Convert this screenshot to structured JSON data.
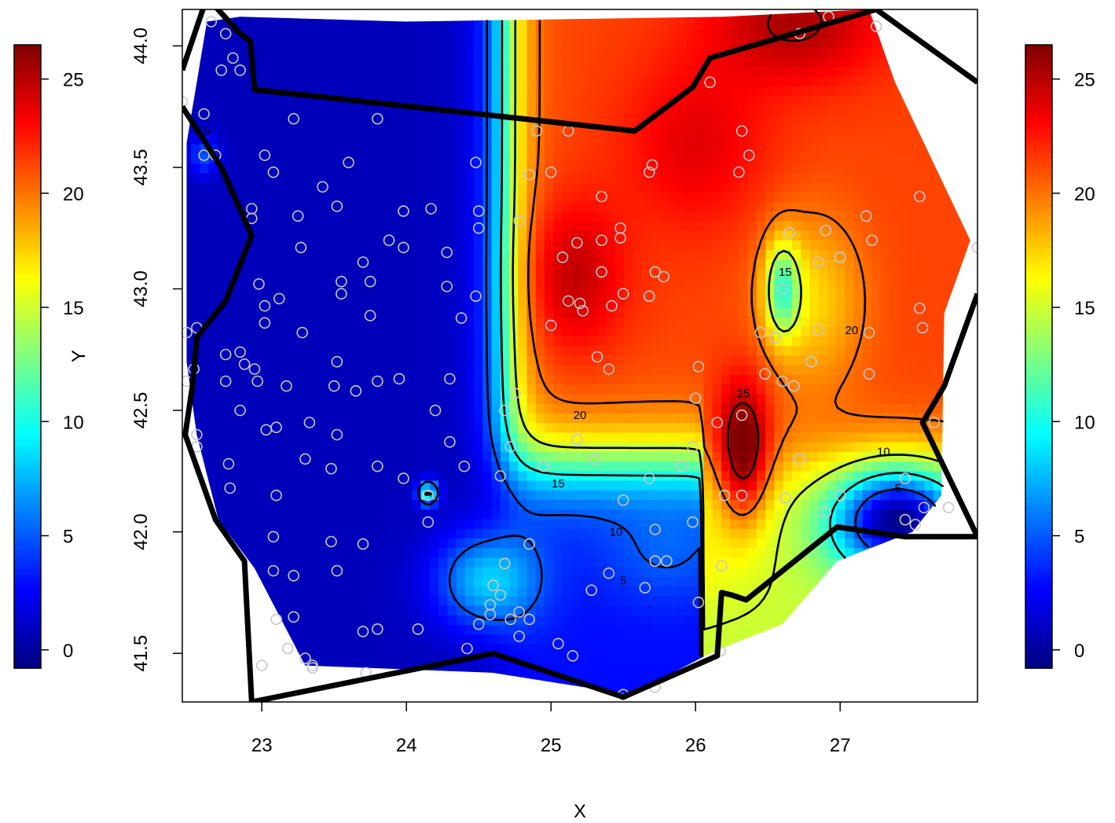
{
  "chart_data": {
    "type": "heatmap",
    "title": "",
    "xlabel": "X",
    "ylabel": "Y",
    "xlim": [
      22.45,
      27.95
    ],
    "ylim": [
      41.3,
      44.15
    ],
    "x_ticks": [
      "23",
      "24",
      "25",
      "26",
      "27"
    ],
    "x_tick_values": [
      23,
      24,
      25,
      26,
      27
    ],
    "y_ticks": [
      "41.5",
      "42.0",
      "42.5",
      "43.0",
      "43.5",
      "44.0"
    ],
    "y_tick_values": [
      41.5,
      42.0,
      42.5,
      43.0,
      43.5,
      44.0
    ],
    "value_range": [
      -0.8,
      26.5
    ],
    "colorbar_ticks": [
      "0",
      "5",
      "10",
      "15",
      "20",
      "25"
    ],
    "colorbar_tick_values": [
      0,
      5,
      10,
      15,
      20,
      25
    ],
    "colormap": [
      "#00007F",
      "#0000FF",
      "#007FFF",
      "#00FFFF",
      "#7FFF7F",
      "#FFFF00",
      "#FF7F00",
      "#FF0000",
      "#7F0000"
    ],
    "contour_levels": [
      5,
      10,
      15,
      20,
      25
    ],
    "contour_labels": [
      {
        "text": "5",
        "x": 22.62,
        "y": 43.65
      },
      {
        "text": "5",
        "x": 25.5,
        "y": 41.8
      },
      {
        "text": "5",
        "x": 27.4,
        "y": 42.18
      },
      {
        "text": "10",
        "x": 25.45,
        "y": 42.0
      },
      {
        "text": "10",
        "x": 27.3,
        "y": 42.33
      },
      {
        "text": "15",
        "x": 25.05,
        "y": 42.2
      },
      {
        "text": "15",
        "x": 26.62,
        "y": 43.07
      },
      {
        "text": "20",
        "x": 25.2,
        "y": 42.48
      },
      {
        "text": "20",
        "x": 27.08,
        "y": 42.83
      },
      {
        "text": "25",
        "x": 26.33,
        "y": 42.57
      }
    ],
    "surface_peaks": [
      {
        "x": 26.35,
        "y": 42.33,
        "value": 26.5
      },
      {
        "x": 26.7,
        "y": 44.1,
        "value": 25.0
      },
      {
        "x": 25.15,
        "y": 43.05,
        "value": 23.0
      },
      {
        "x": 26.0,
        "y": 43.6,
        "value": 22.0
      }
    ],
    "surface_troughs": [
      {
        "x": 23.4,
        "y": 42.7,
        "value": 0.5
      },
      {
        "x": 24.15,
        "y": 42.16,
        "value": 11.0
      },
      {
        "x": 26.6,
        "y": 43.0,
        "value": 13.0
      },
      {
        "x": 27.4,
        "y": 42.05,
        "value": 1.0
      }
    ],
    "observation_points": [
      [
        22.65,
        44.1
      ],
      [
        22.75,
        44.05
      ],
      [
        22.8,
        43.95
      ],
      [
        22.72,
        43.9
      ],
      [
        22.85,
        43.9
      ],
      [
        22.45,
        43.77
      ],
      [
        22.6,
        43.72
      ],
      [
        22.6,
        43.55
      ],
      [
        22.68,
        43.55
      ],
      [
        23.02,
        43.55
      ],
      [
        23.08,
        43.48
      ],
      [
        23.22,
        43.7
      ],
      [
        23.6,
        43.52
      ],
      [
        23.8,
        43.7
      ],
      [
        23.42,
        43.42
      ],
      [
        23.52,
        43.34
      ],
      [
        22.93,
        43.33
      ],
      [
        22.93,
        43.29
      ],
      [
        23.25,
        43.3
      ],
      [
        23.27,
        43.17
      ],
      [
        23.98,
        43.32
      ],
      [
        23.88,
        43.2
      ],
      [
        23.98,
        43.17
      ],
      [
        24.17,
        43.33
      ],
      [
        23.7,
        43.11
      ],
      [
        23.75,
        43.03
      ],
      [
        23.55,
        43.03
      ],
      [
        23.55,
        42.98
      ],
      [
        22.98,
        43.02
      ],
      [
        23.12,
        42.96
      ],
      [
        23.02,
        42.93
      ],
      [
        23.02,
        42.86
      ],
      [
        23.28,
        42.82
      ],
      [
        23.75,
        42.89
      ],
      [
        22.48,
        42.82
      ],
      [
        22.55,
        42.84
      ],
      [
        22.53,
        42.67
      ],
      [
        22.48,
        42.62
      ],
      [
        22.75,
        42.73
      ],
      [
        22.85,
        42.74
      ],
      [
        22.88,
        42.69
      ],
      [
        22.95,
        42.67
      ],
      [
        22.97,
        42.62
      ],
      [
        22.75,
        42.62
      ],
      [
        23.17,
        42.6
      ],
      [
        23.5,
        42.6
      ],
      [
        23.65,
        42.58
      ],
      [
        23.8,
        42.62
      ],
      [
        23.95,
        42.63
      ],
      [
        23.52,
        42.7
      ],
      [
        22.85,
        42.5
      ],
      [
        23.03,
        42.42
      ],
      [
        23.1,
        42.43
      ],
      [
        23.33,
        42.45
      ],
      [
        23.52,
        42.4
      ],
      [
        22.55,
        42.4
      ],
      [
        22.55,
        42.35
      ],
      [
        23.3,
        42.3
      ],
      [
        22.77,
        42.28
      ],
      [
        23.48,
        42.26
      ],
      [
        23.8,
        42.27
      ],
      [
        23.98,
        42.22
      ],
      [
        22.78,
        42.18
      ],
      [
        23.1,
        42.15
      ],
      [
        24.2,
        42.5
      ],
      [
        24.3,
        42.37
      ],
      [
        24.4,
        42.27
      ],
      [
        24.15,
        42.15
      ],
      [
        24.15,
        42.04
      ],
      [
        23.48,
        41.96
      ],
      [
        23.7,
        41.95
      ],
      [
        23.08,
        41.98
      ],
      [
        23.08,
        41.84
      ],
      [
        23.52,
        41.84
      ],
      [
        23.22,
        41.82
      ],
      [
        23.1,
        41.64
      ],
      [
        23.22,
        41.65
      ],
      [
        23.8,
        41.6
      ],
      [
        23.7,
        41.59
      ],
      [
        24.08,
        41.6
      ],
      [
        23.18,
        41.52
      ],
      [
        23.3,
        41.48
      ],
      [
        23.35,
        41.45
      ],
      [
        23.35,
        41.44
      ],
      [
        23.0,
        41.45
      ],
      [
        23.72,
        41.42
      ],
      [
        24.42,
        41.52
      ],
      [
        24.3,
        42.63
      ],
      [
        24.38,
        42.88
      ],
      [
        24.48,
        42.97
      ],
      [
        24.28,
        43.01
      ],
      [
        24.28,
        43.15
      ],
      [
        24.5,
        43.32
      ],
      [
        24.5,
        43.25
      ],
      [
        24.48,
        43.52
      ],
      [
        24.65,
        42.23
      ],
      [
        24.72,
        42.35
      ],
      [
        24.75,
        42.57
      ],
      [
        24.68,
        42.5
      ],
      [
        24.95,
        42.27
      ],
      [
        24.85,
        41.95
      ],
      [
        24.68,
        41.87
      ],
      [
        24.6,
        41.78
      ],
      [
        24.65,
        41.74
      ],
      [
        24.58,
        41.7
      ],
      [
        24.58,
        41.66
      ],
      [
        24.72,
        41.64
      ],
      [
        24.78,
        41.67
      ],
      [
        24.85,
        41.64
      ],
      [
        24.78,
        41.57
      ],
      [
        24.5,
        41.62
      ],
      [
        25.05,
        41.54
      ],
      [
        25.15,
        41.49
      ],
      [
        24.9,
        43.65
      ],
      [
        24.85,
        43.47
      ],
      [
        25.0,
        43.48
      ],
      [
        24.78,
        43.28
      ],
      [
        25.12,
        43.65
      ],
      [
        25.35,
        43.38
      ],
      [
        25.18,
        43.19
      ],
      [
        25.08,
        43.13
      ],
      [
        25.35,
        43.2
      ],
      [
        25.48,
        43.25
      ],
      [
        25.48,
        43.21
      ],
      [
        25.35,
        43.07
      ],
      [
        25.12,
        42.95
      ],
      [
        25.2,
        42.94
      ],
      [
        25.22,
        42.91
      ],
      [
        25.42,
        42.93
      ],
      [
        25.5,
        42.98
      ],
      [
        25.0,
        42.85
      ],
      [
        25.32,
        42.72
      ],
      [
        25.4,
        42.67
      ],
      [
        25.68,
        43.48
      ],
      [
        25.7,
        43.51
      ],
      [
        25.68,
        42.97
      ],
      [
        25.72,
        43.07
      ],
      [
        25.78,
        43.05
      ],
      [
        25.3,
        42.3
      ],
      [
        25.18,
        42.38
      ],
      [
        25.68,
        42.22
      ],
      [
        25.9,
        42.27
      ],
      [
        25.98,
        42.35
      ],
      [
        25.98,
        42.04
      ],
      [
        25.72,
        42.01
      ],
      [
        25.72,
        41.88
      ],
      [
        25.8,
        41.88
      ],
      [
        25.5,
        42.13
      ],
      [
        25.4,
        41.83
      ],
      [
        25.28,
        41.76
      ],
      [
        25.65,
        41.77
      ],
      [
        26.02,
        41.71
      ],
      [
        26.02,
        42.68
      ],
      [
        26.0,
        42.55
      ],
      [
        26.15,
        42.45
      ],
      [
        26.32,
        42.48
      ],
      [
        26.2,
        42.15
      ],
      [
        26.32,
        42.15
      ],
      [
        26.1,
        43.85
      ],
      [
        26.32,
        43.65
      ],
      [
        26.37,
        43.55
      ],
      [
        26.3,
        43.48
      ],
      [
        26.48,
        42.65
      ],
      [
        26.45,
        42.82
      ],
      [
        26.55,
        42.8
      ],
      [
        26.6,
        42.62
      ],
      [
        26.68,
        42.6
      ],
      [
        26.72,
        42.3
      ],
      [
        26.62,
        42.14
      ],
      [
        26.65,
        43.23
      ],
      [
        26.6,
        43.0
      ],
      [
        26.8,
        42.7
      ],
      [
        26.85,
        42.83
      ],
      [
        26.9,
        43.24
      ],
      [
        26.85,
        43.11
      ],
      [
        27.0,
        43.13
      ],
      [
        26.9,
        42.08
      ],
      [
        27.0,
        42.15
      ],
      [
        27.2,
        42.82
      ],
      [
        27.2,
        42.65
      ],
      [
        27.18,
        43.3
      ],
      [
        27.22,
        43.2
      ],
      [
        27.55,
        43.38
      ],
      [
        27.55,
        42.92
      ],
      [
        27.57,
        42.84
      ],
      [
        27.65,
        42.45
      ],
      [
        27.45,
        42.22
      ],
      [
        27.45,
        42.05
      ],
      [
        27.52,
        42.03
      ],
      [
        27.58,
        42.1
      ],
      [
        27.75,
        42.1
      ],
      [
        27.95,
        43.17
      ],
      [
        26.72,
        44.05
      ],
      [
        26.92,
        44.12
      ],
      [
        27.25,
        44.08
      ],
      [
        26.17,
        41.51
      ],
      [
        25.72,
        41.36
      ],
      [
        25.5,
        41.33
      ],
      [
        26.18,
        41.86
      ]
    ],
    "boundary_polylines": [
      [
        [
          22.45,
          43.9
        ],
        [
          22.62,
          44.2
        ],
        [
          22.85,
          44.05
        ],
        [
          22.92,
          44.02
        ],
        [
          22.95,
          43.82
        ],
        [
          25.58,
          43.65
        ],
        [
          25.98,
          43.83
        ],
        [
          26.1,
          43.95
        ],
        [
          27.25,
          44.15
        ],
        [
          27.95,
          43.85
        ]
      ],
      [
        [
          22.45,
          43.75
        ],
        [
          22.72,
          43.5
        ],
        [
          22.93,
          43.22
        ],
        [
          22.75,
          42.95
        ],
        [
          22.55,
          42.8
        ],
        [
          22.52,
          42.6
        ],
        [
          22.47,
          42.4
        ],
        [
          22.68,
          42.05
        ],
        [
          22.88,
          41.88
        ],
        [
          22.93,
          41.3
        ],
        [
          24.6,
          41.5
        ],
        [
          25.5,
          41.32
        ],
        [
          26.15,
          41.49
        ],
        [
          26.18,
          41.75
        ],
        [
          26.25,
          41.74
        ],
        [
          26.3,
          41.73
        ],
        [
          26.35,
          41.72
        ],
        [
          26.98,
          42.02
        ],
        [
          27.45,
          41.98
        ],
        [
          27.95,
          41.98
        ]
      ],
      [
        [
          27.95,
          42.98
        ],
        [
          27.72,
          42.6
        ],
        [
          27.57,
          42.45
        ],
        [
          27.95,
          41.98
        ]
      ]
    ]
  }
}
